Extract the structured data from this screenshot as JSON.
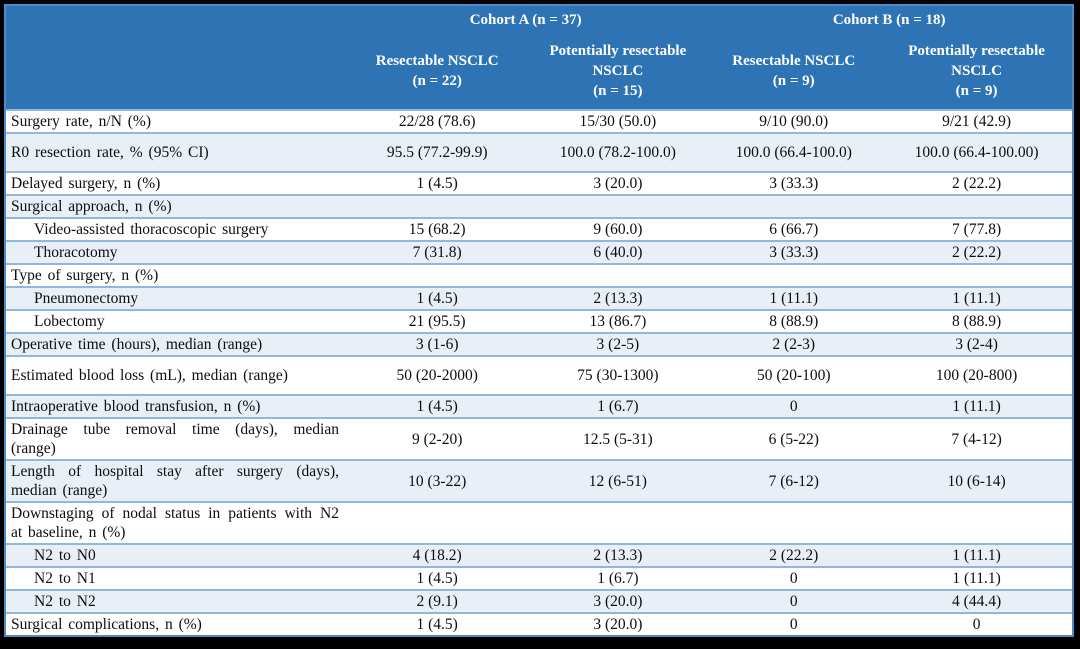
{
  "colors": {
    "accent": "#2E74B5",
    "band": "#E9EFF7",
    "border_outer": "#4E8CC8",
    "border_inner": "#8FB7DF",
    "header_text": "#FFFFFF",
    "frame": "#000000"
  },
  "table": {
    "cohorts": [
      {
        "label": "Cohort A (n = 37)"
      },
      {
        "label": "Cohort B (n = 18)"
      }
    ],
    "columns": [
      {
        "title": "Resectable NSCLC",
        "n": "(n = 22)"
      },
      {
        "title": "Potentially resectable NSCLC",
        "n": "(n = 15)"
      },
      {
        "title": "Resectable NSCLC",
        "n": "(n = 9)"
      },
      {
        "title": "Potentially resectable NSCLC",
        "n": "(n = 9)"
      }
    ],
    "rows": [
      {
        "label": "Surgery rate, n/N (%)",
        "indent": false,
        "tall": false,
        "values": [
          "22/28 (78.6)",
          "15/30 (50.0)",
          "9/10 (90.0)",
          "9/21 (42.9)"
        ]
      },
      {
        "label": "R0 resection rate, % (95% CI)",
        "indent": false,
        "tall": true,
        "values": [
          "95.5 (77.2-99.9)",
          "100.0 (78.2-100.0)",
          "100.0 (66.4-100.0)",
          "100.0 (66.4-100.00)"
        ]
      },
      {
        "label": "Delayed surgery, n (%)",
        "indent": false,
        "tall": false,
        "values": [
          "1 (4.5)",
          "3 (20.0)",
          "3 (33.3)",
          "2 (22.2)"
        ]
      },
      {
        "label": "Surgical approach, n (%)",
        "indent": false,
        "tall": false,
        "values": [
          "",
          "",
          "",
          ""
        ]
      },
      {
        "label": "Video-assisted thoracoscopic surgery",
        "indent": true,
        "tall": false,
        "values": [
          "15 (68.2)",
          "9 (60.0)",
          "6 (66.7)",
          "7 (77.8)"
        ]
      },
      {
        "label": "Thoracotomy",
        "indent": true,
        "tall": false,
        "values": [
          "7 (31.8)",
          "6 (40.0)",
          "3 (33.3)",
          "2 (22.2)"
        ]
      },
      {
        "label": "Type of surgery, n (%)",
        "indent": false,
        "tall": false,
        "values": [
          "",
          "",
          "",
          ""
        ]
      },
      {
        "label": "Pneumonectomy",
        "indent": true,
        "tall": false,
        "values": [
          "1 (4.5)",
          "2 (13.3)",
          "1 (11.1)",
          "1 (11.1)"
        ]
      },
      {
        "label": "Lobectomy",
        "indent": true,
        "tall": false,
        "values": [
          "21 (95.5)",
          "13 (86.7)",
          "8 (88.9)",
          "8 (88.9)"
        ]
      },
      {
        "label": "Operative time (hours), median (range)",
        "indent": false,
        "tall": false,
        "values": [
          "3 (1-6)",
          "3 (2-5)",
          "2 (2-3)",
          "3 (2-4)"
        ]
      },
      {
        "label": "Estimated blood loss (mL), median (range)",
        "indent": false,
        "tall": true,
        "values": [
          "50 (20-2000)",
          "75 (30-1300)",
          "50 (20-100)",
          "100 (20-800)"
        ]
      },
      {
        "label": "Intraoperative blood transfusion, n (%)",
        "indent": false,
        "tall": false,
        "values": [
          "1 (4.5)",
          "1 (6.7)",
          "0",
          "1 (11.1)"
        ]
      },
      {
        "label": "Drainage tube removal time (days), median (range)",
        "indent": false,
        "tall": false,
        "values": [
          "9 (2-20)",
          "12.5 (5-31)",
          "6 (5-22)",
          "7 (4-12)"
        ]
      },
      {
        "label": "Length of hospital stay after surgery (days), median (range)",
        "indent": false,
        "tall": false,
        "values": [
          "10 (3-22)",
          "12 (6-51)",
          "7 (6-12)",
          "10 (6-14)"
        ]
      },
      {
        "label": "Downstaging of nodal status in patients with N2 at baseline, n (%)",
        "indent": false,
        "tall": false,
        "values": [
          "",
          "",
          "",
          ""
        ]
      },
      {
        "label": "N2 to N0",
        "indent": true,
        "tall": false,
        "values": [
          "4 (18.2)",
          "2 (13.3)",
          "2 (22.2)",
          "1 (11.1)"
        ]
      },
      {
        "label": "N2 to N1",
        "indent": true,
        "tall": false,
        "values": [
          "1 (4.5)",
          "1 (6.7)",
          "0",
          "1 (11.1)"
        ]
      },
      {
        "label": "N2 to N2",
        "indent": true,
        "tall": false,
        "values": [
          "2 (9.1)",
          "3 (20.0)",
          "0",
          "4 (44.4)"
        ]
      },
      {
        "label": "Surgical complications, n (%)",
        "indent": false,
        "tall": false,
        "values": [
          "1 (4.5)",
          "3 (20.0)",
          "0",
          "0"
        ]
      }
    ]
  }
}
